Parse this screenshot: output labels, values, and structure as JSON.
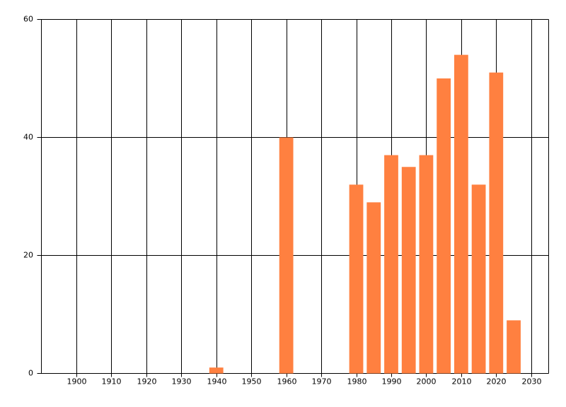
{
  "chart_data": {
    "type": "bar",
    "x": [
      1940,
      1960,
      1980,
      1985,
      1990,
      1995,
      2000,
      2005,
      2010,
      2015,
      2020,
      2025
    ],
    "values": [
      1,
      40,
      32,
      29,
      37,
      35,
      37,
      50,
      54,
      32,
      51,
      9
    ],
    "color": "#ff8040",
    "xlim": [
      1890,
      2035
    ],
    "xticks": [
      1900,
      1910,
      1920,
      1930,
      1940,
      1950,
      1960,
      1970,
      1980,
      1990,
      2000,
      2010,
      2020,
      2030
    ],
    "ylim": [
      0,
      60
    ],
    "yticks": [
      0,
      20,
      40,
      60
    ],
    "grid": true
  }
}
